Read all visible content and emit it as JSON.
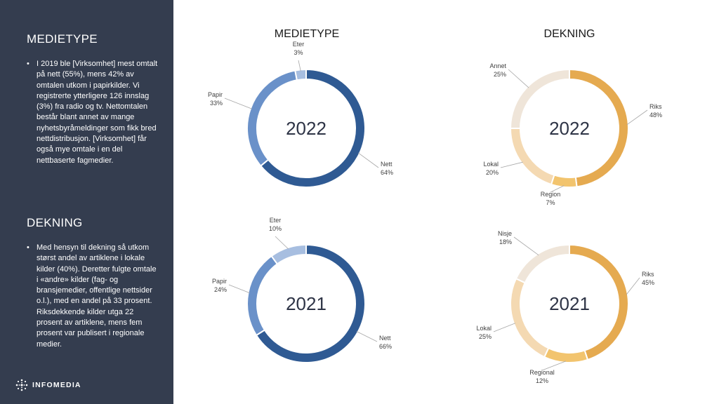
{
  "sidebar": {
    "sections": [
      {
        "heading": "MEDIETYPE",
        "text": "I 2019 ble [Virksomhet] mest omtalt på nett (55%), mens 42% av omtalen utkom i papirkilder. Vi registrerte ytterligere 126 innslag (3%) fra radio og tv. Nettomtalen består blant annet av mange nyhetsbyråmeldinger som fikk bred nettdistribusjon. [Virksomhet] får også mye omtale i en del nettbaserte fagmedier."
      },
      {
        "heading": "DEKNING",
        "text": "Med hensyn til dekning så utkom størst andel av artiklene i lokale kilder (40%). Deretter fulgte omtale i «andre» kilder (fag- og bransjemedier, offentlige nettsider o.l.), med en andel på 33 prosent. Riksdekkende kilder utga 22 prosent av artiklene, mens fem prosent var publisert i regionale medier."
      }
    ],
    "logo_text": "INFOMEDIA"
  },
  "column_titles": [
    "MEDIETYPE",
    "DEKNING"
  ],
  "chart_data": [
    {
      "type": "pie",
      "group": "MEDIETYPE",
      "center_label": "2022",
      "slices": [
        {
          "label": "Nett",
          "value": 64,
          "display": "64%",
          "color": "#2f5a93"
        },
        {
          "label": "Papir",
          "value": 33,
          "display": "33%",
          "color": "#6a91c9"
        },
        {
          "label": "Eter",
          "value": 3,
          "display": "3%",
          "color": "#a7bee0"
        }
      ]
    },
    {
      "type": "pie",
      "group": "DEKNING",
      "center_label": "2022",
      "slices": [
        {
          "label": "Riks",
          "value": 48,
          "display": "48%",
          "color": "#e5aa50"
        },
        {
          "label": "Region",
          "value": 7,
          "display": "7%",
          "color": "#f2c46e"
        },
        {
          "label": "Lokal",
          "value": 20,
          "display": "20%",
          "color": "#f4d9b2"
        },
        {
          "label": "Annet",
          "value": 25,
          "display": "25%",
          "color": "#efe5d9"
        }
      ]
    },
    {
      "type": "pie",
      "group": "MEDIETYPE",
      "center_label": "2021",
      "slices": [
        {
          "label": "Nett",
          "value": 66,
          "display": "66%",
          "color": "#2f5a93"
        },
        {
          "label": "Papir",
          "value": 24,
          "display": "24%",
          "color": "#6a91c9"
        },
        {
          "label": "Eter",
          "value": 10,
          "display": "10%",
          "color": "#a7bee0"
        }
      ]
    },
    {
      "type": "pie",
      "group": "DEKNING",
      "center_label": "2021",
      "slices": [
        {
          "label": "Riks",
          "value": 45,
          "display": "45%",
          "color": "#e5aa50"
        },
        {
          "label": "Regional",
          "value": 12,
          "display": "12%",
          "color": "#f2c46e"
        },
        {
          "label": "Lokal",
          "value": 25,
          "display": "25%",
          "color": "#f4d9b2"
        },
        {
          "label": "Nisje",
          "value": 18,
          "display": "18%",
          "color": "#efe5d9"
        }
      ]
    }
  ]
}
